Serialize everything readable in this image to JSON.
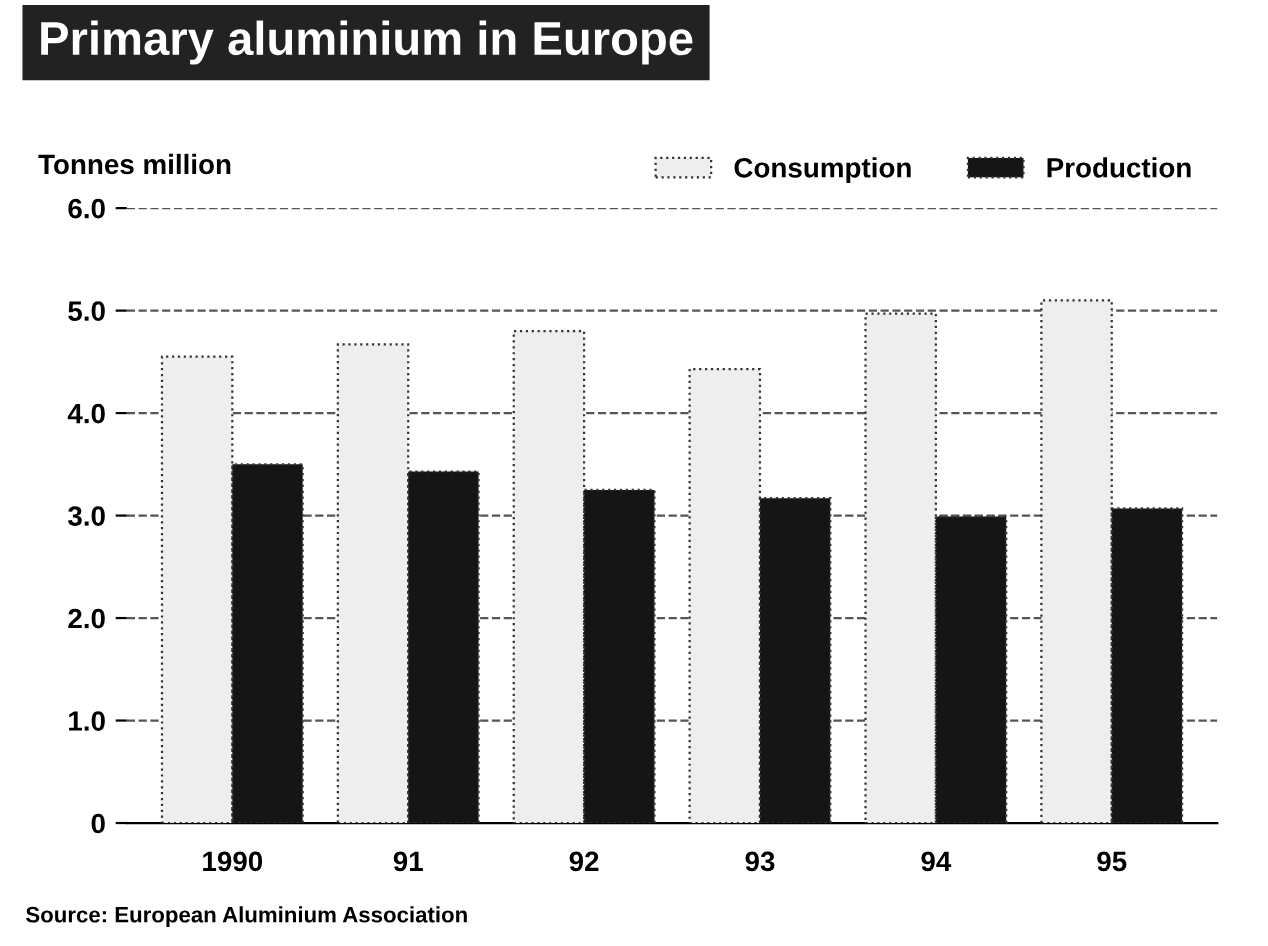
{
  "chart_data": {
    "type": "bar",
    "title": "Primary aluminium in Europe",
    "ylabel": "Tonnes million",
    "categories": [
      "1990",
      "91",
      "92",
      "93",
      "94",
      "95"
    ],
    "series": [
      {
        "name": "Consumption",
        "color": "#eeeeee",
        "values": [
          4.55,
          4.67,
          4.8,
          4.43,
          4.97,
          5.1
        ]
      },
      {
        "name": "Production",
        "color": "#151515",
        "values": [
          3.5,
          3.43,
          3.25,
          3.17,
          2.99,
          3.07
        ]
      }
    ],
    "ylim": [
      0,
      6
    ],
    "yticks": [
      0,
      {
        "value": 1,
        "label": "1.0"
      },
      {
        "value": 2,
        "label": "2.0"
      },
      {
        "value": 3,
        "label": "3.0"
      },
      {
        "value": 4,
        "label": "4.0"
      },
      {
        "value": 5,
        "label": "5.0"
      },
      {
        "value": 6,
        "label": "6.0"
      }
    ],
    "grid": "y",
    "legend": "top right",
    "annotations": [
      "Source: European Aluminium Association"
    ]
  }
}
